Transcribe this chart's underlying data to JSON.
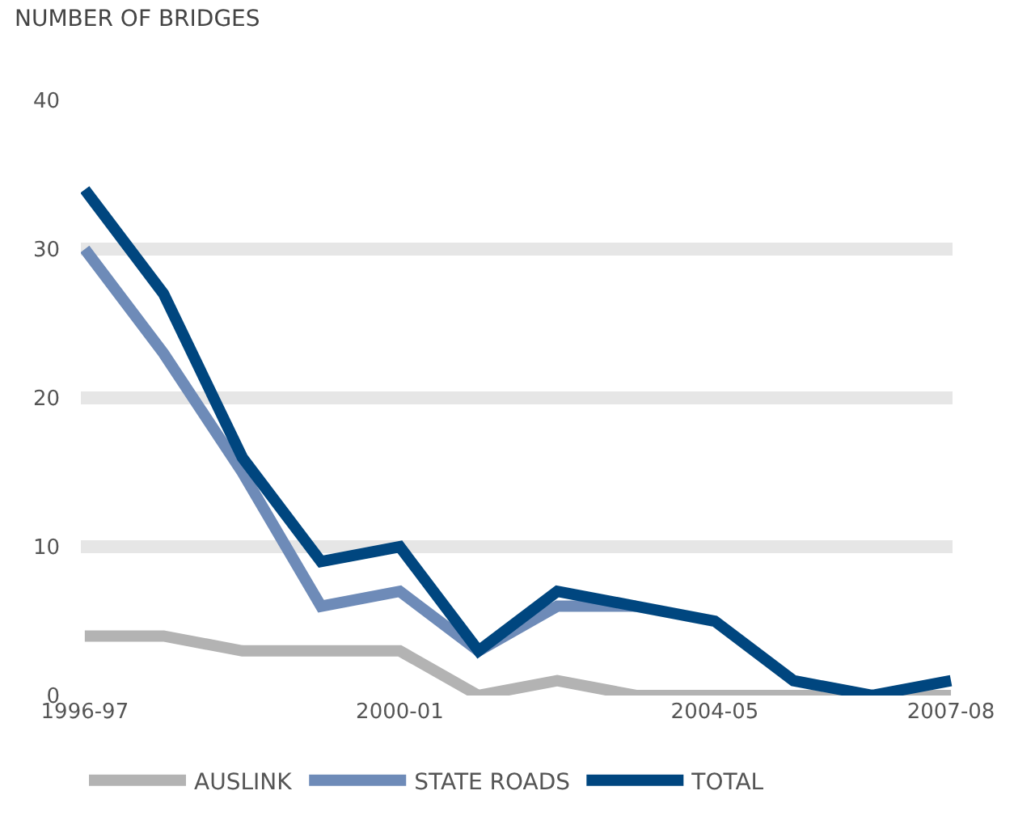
{
  "chart_data": {
    "type": "line",
    "ylabel": "NUMBER OF BRIDGES",
    "categories": [
      "1996-97",
      null,
      null,
      null,
      "2000-01",
      null,
      null,
      null,
      "2004-05",
      null,
      null,
      "2007-08"
    ],
    "series": [
      {
        "name": "AUSLINK",
        "color": "#b3b3b3",
        "values": [
          4,
          4,
          3,
          3,
          3,
          0,
          1,
          0,
          0,
          0,
          0,
          0
        ]
      },
      {
        "name": "STATE ROADS",
        "color": "#6e8bb8",
        "values": [
          30,
          23,
          15,
          6,
          7,
          3,
          6,
          6,
          null,
          null,
          null,
          null
        ]
      },
      {
        "name": "TOTAL",
        "color": "#00467f",
        "values": [
          34,
          27,
          16,
          9,
          10,
          3,
          7,
          6,
          5,
          1,
          0,
          1
        ]
      }
    ],
    "ylim": [
      0,
      40
    ],
    "yticks": [
      0,
      10,
      20,
      30,
      40
    ],
    "grid": "y",
    "legend": "bottom",
    "marker": "none",
    "line_style": "solid"
  }
}
